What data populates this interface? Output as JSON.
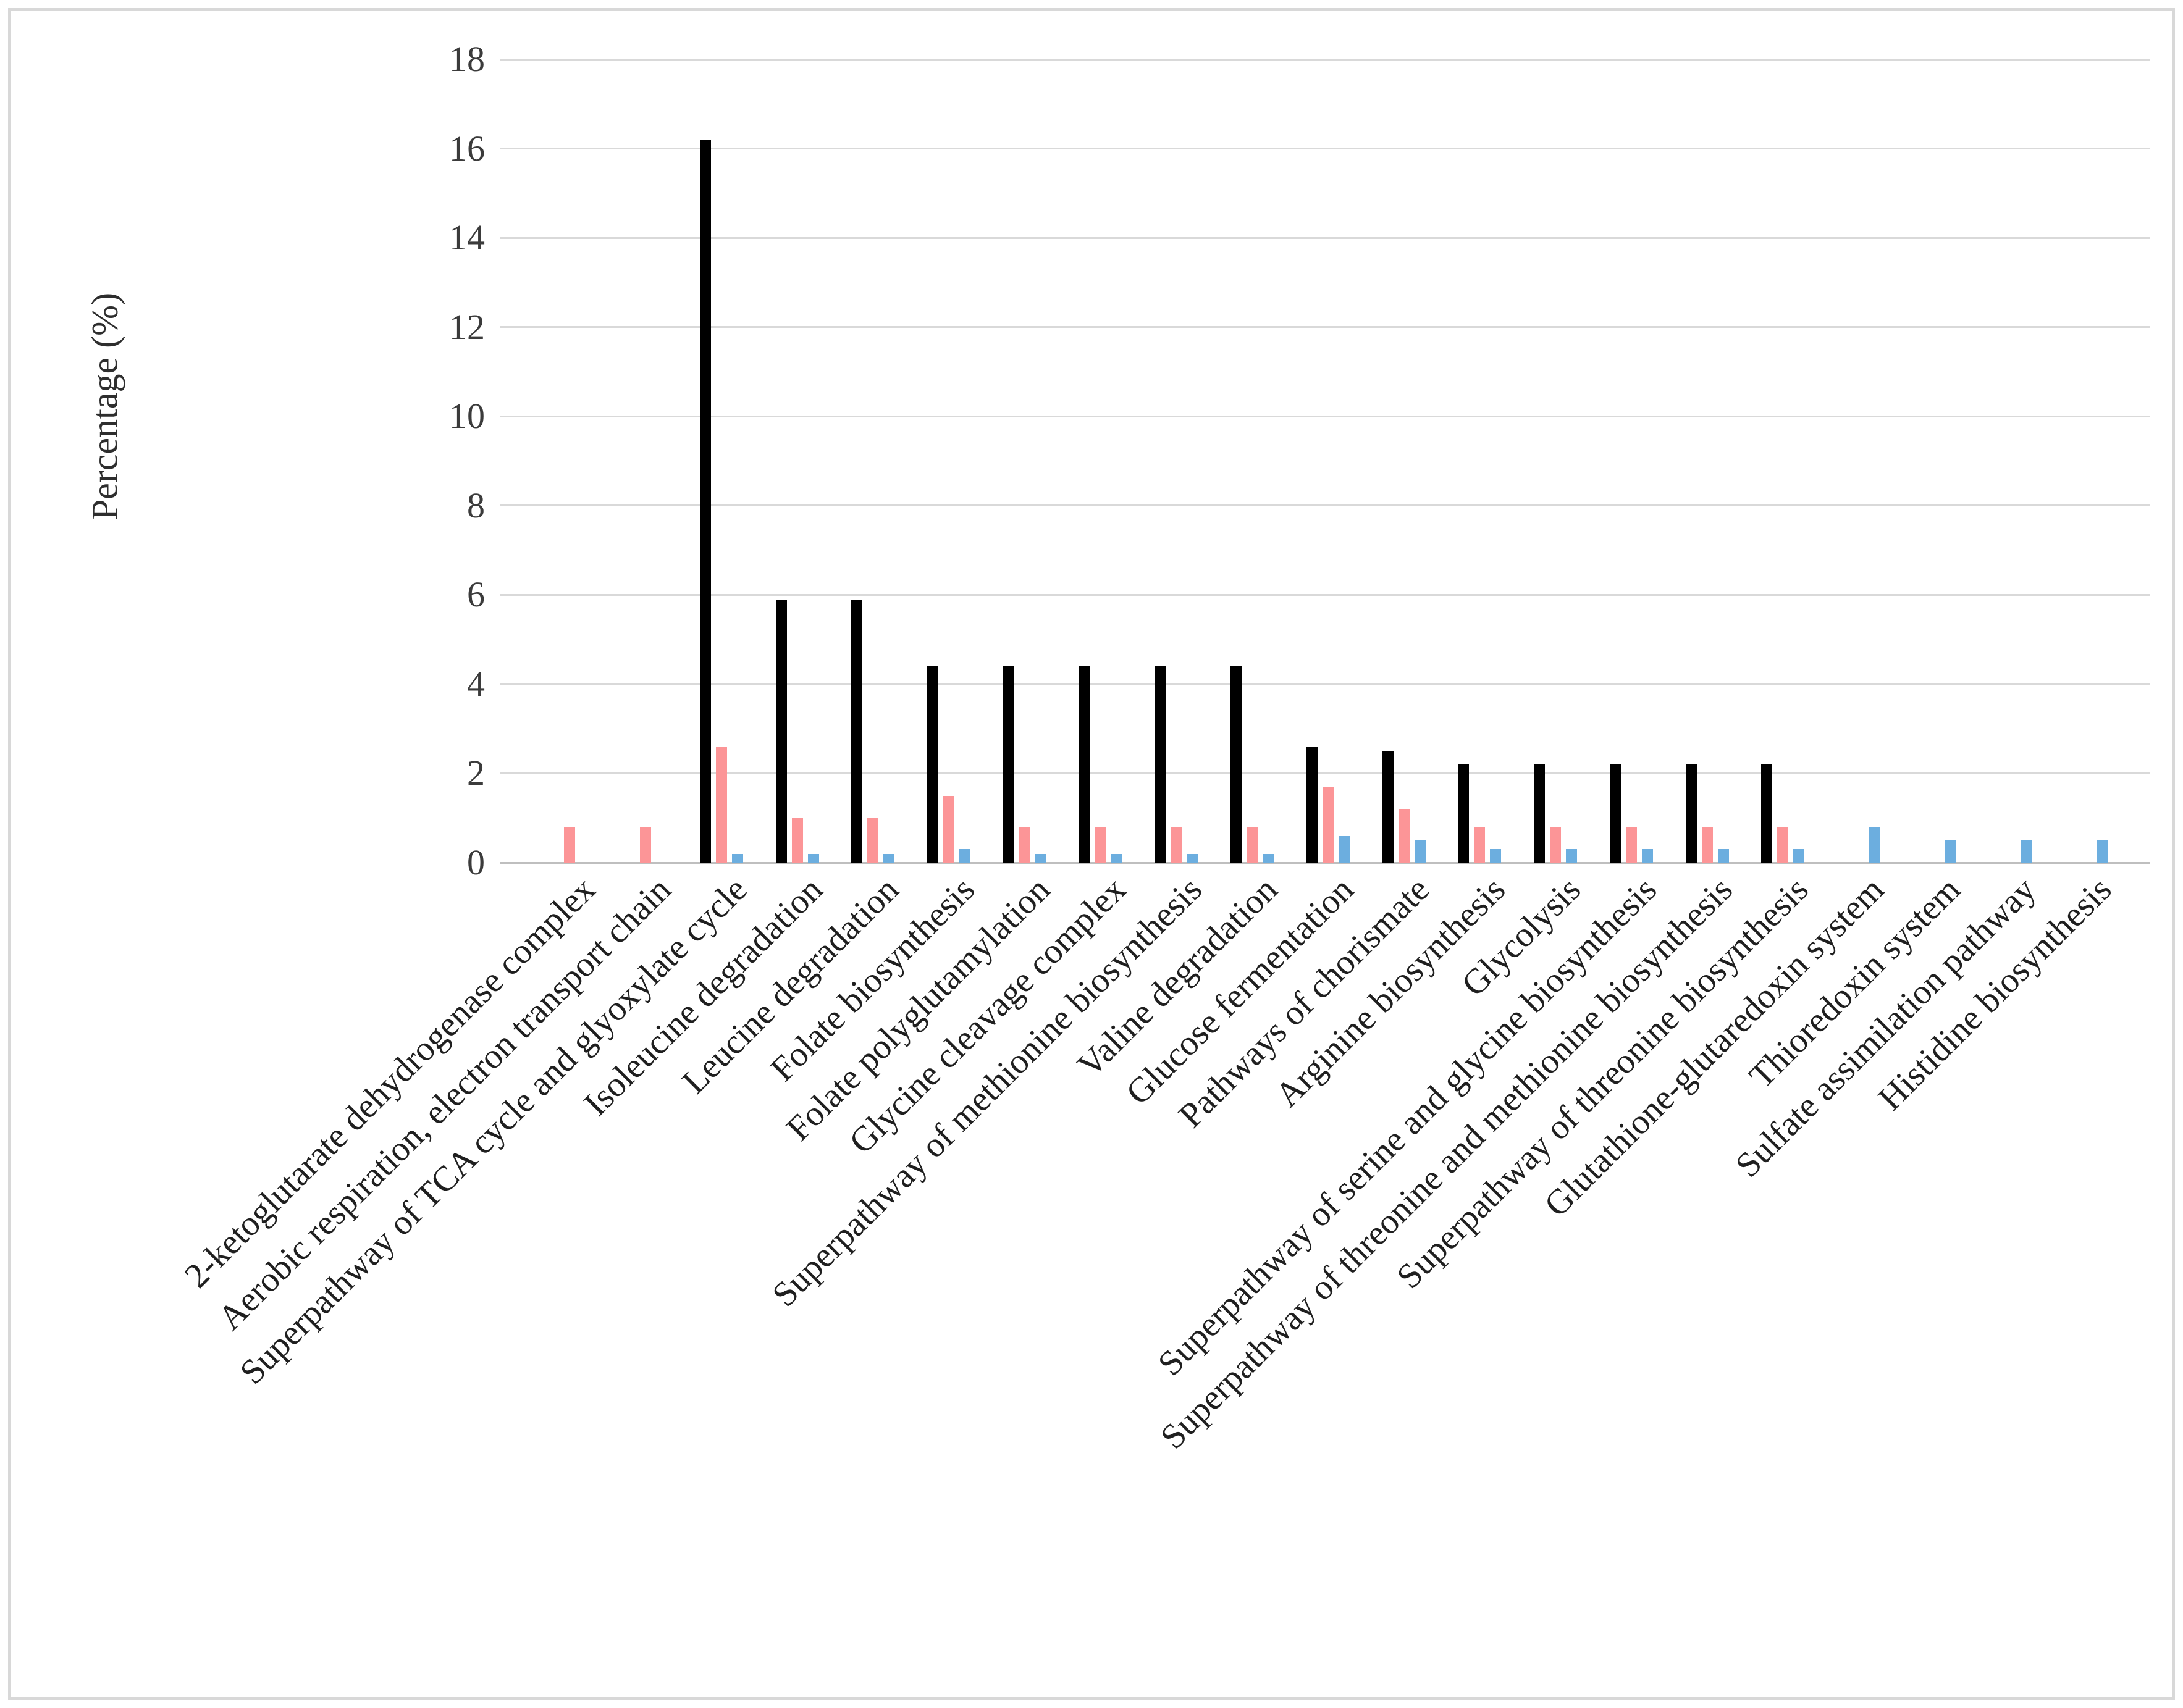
{
  "chart_data": {
    "type": "bar",
    "title": "",
    "xlabel": "",
    "ylabel": "Percentage (%)",
    "ylim": [
      0,
      18
    ],
    "ytick_step": 2,
    "ytick_labels": [
      "0",
      "2",
      "4",
      "6",
      "8",
      "10",
      "12",
      "14",
      "16",
      "18"
    ],
    "grid": "horizontal",
    "legend_position": "none",
    "categories": [
      "2-ketoglutarate dehydrogenase complex",
      "Aerobic respiration, electron transport chain",
      "Superpathway of TCA cycle and glyoxylate cycle",
      "Isoleucine degradation",
      "Leucine degradation",
      "Folate biosynthesis",
      "Folate polyglutamylation",
      "Glycine cleavage complex",
      "Superpathway of methionine biosynthesis",
      "Valine degradation",
      "Glucose fermentation",
      "Pathways of chorismate",
      "Arginine biosynthesis",
      "Glycolysis",
      "Superpathway of serine and glycine biosynthesis",
      "Superpathway of threonine and methionine biosynthesis",
      "Superpathway of threonine biosynthesis",
      "Glutathione-glutaredoxin system",
      "Thioredoxin system",
      "Sulfate assimilation pathway",
      "Histidine biosynthesis"
    ],
    "series": [
      {
        "name": "series-black",
        "color": "#000000",
        "values": [
          null,
          null,
          16.2,
          5.9,
          5.9,
          4.4,
          4.4,
          4.4,
          4.4,
          4.4,
          2.6,
          2.5,
          2.2,
          2.2,
          2.2,
          2.2,
          2.2,
          null,
          null,
          null,
          null
        ]
      },
      {
        "name": "series-pink",
        "color": "#FC9597",
        "values": [
          0.8,
          0.8,
          2.6,
          1.0,
          1.0,
          1.5,
          0.8,
          0.8,
          0.8,
          0.8,
          1.7,
          1.2,
          0.8,
          0.8,
          0.8,
          0.8,
          0.8,
          null,
          null,
          null,
          null
        ]
      },
      {
        "name": "series-blue",
        "color": "#6CAEDF",
        "values": [
          null,
          null,
          0.2,
          0.2,
          0.2,
          0.3,
          0.2,
          0.2,
          0.2,
          0.2,
          0.6,
          0.5,
          0.3,
          0.3,
          0.3,
          0.3,
          0.3,
          0.8,
          0.5,
          0.5,
          0.5
        ]
      }
    ]
  },
  "colors": {
    "background": "#FFFFFF",
    "frame_border": "#D8D8D8",
    "gridline": "#D9D9D9",
    "axis_line": "#BFBFBF",
    "tick_text": "#3B3B3B",
    "category_text": "#1F1F1F"
  }
}
